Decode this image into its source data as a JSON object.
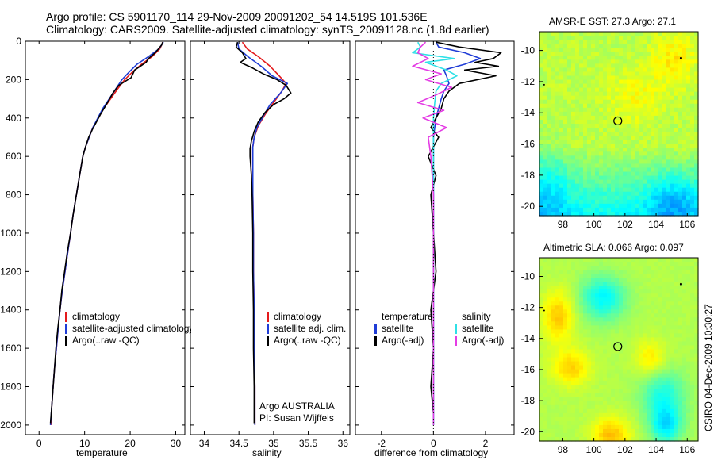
{
  "header": {
    "title_line1": "Argo profile: CS 5901170_114 29-Nov-2009 20091202_54 14.519S 101.536E",
    "title_line2": "Climatology: CARS2009. Satellite-adjusted climatology: synTS_20091128.nc (1.8d earlier)"
  },
  "footer": {
    "credit": "CSIRO 04-Dec-2009 10:30:27"
  },
  "annotation": {
    "line1": "Argo AUSTRALIA",
    "line2": "PI: Susan Wijffels"
  },
  "colors": {
    "red": "#e41a1c",
    "blue": "#1f3cd6",
    "black": "#000000",
    "cyan": "#2fe0e6",
    "magenta": "#e43ce4"
  },
  "chart_data": [
    {
      "type": "line",
      "xlabel": "temperature",
      "ylabel": "",
      "xlim": [
        -3,
        32
      ],
      "ylim": [
        2050,
        0
      ],
      "xticks": [
        0,
        10,
        20,
        30
      ],
      "yticks": [
        0,
        200,
        400,
        600,
        800,
        1000,
        1200,
        1400,
        1600,
        1800,
        2000
      ],
      "legend": [
        "climatology",
        "satellite-adjusted climatology",
        "Argo(..raw -QC)"
      ],
      "series": [
        {
          "name": "climatology",
          "color": "red",
          "points": [
            [
              27.2,
              5
            ],
            [
              26.5,
              40
            ],
            [
              24.8,
              80
            ],
            [
              22.5,
              120
            ],
            [
              20.5,
              160
            ],
            [
              18.8,
              200
            ],
            [
              17.2,
              250
            ],
            [
              15.7,
              300
            ],
            [
              14.2,
              350
            ],
            [
              13.0,
              400
            ],
            [
              11.8,
              450
            ],
            [
              11.0,
              500
            ],
            [
              10.2,
              550
            ],
            [
              9.6,
              600
            ],
            [
              8.9,
              700
            ],
            [
              8.2,
              800
            ],
            [
              7.5,
              900
            ],
            [
              6.9,
              1000
            ],
            [
              6.3,
              1100
            ],
            [
              5.7,
              1200
            ],
            [
              5.1,
              1300
            ],
            [
              4.6,
              1400
            ],
            [
              4.2,
              1500
            ],
            [
              3.8,
              1600
            ],
            [
              3.4,
              1700
            ],
            [
              3.1,
              1800
            ],
            [
              2.8,
              1900
            ],
            [
              2.6,
              2000
            ]
          ]
        },
        {
          "name": "satellite-adjusted climatology",
          "color": "blue",
          "points": [
            [
              27.3,
              5
            ],
            [
              26.3,
              40
            ],
            [
              24.0,
              80
            ],
            [
              21.5,
              120
            ],
            [
              19.8,
              160
            ],
            [
              18.2,
              200
            ],
            [
              16.8,
              250
            ],
            [
              15.4,
              300
            ],
            [
              14.0,
              350
            ],
            [
              12.9,
              400
            ],
            [
              11.8,
              450
            ],
            [
              11.0,
              500
            ],
            [
              10.2,
              550
            ],
            [
              9.6,
              600
            ],
            [
              8.9,
              700
            ],
            [
              8.2,
              800
            ],
            [
              7.5,
              900
            ],
            [
              6.9,
              1000
            ],
            [
              6.3,
              1100
            ],
            [
              5.7,
              1200
            ],
            [
              5.1,
              1300
            ],
            [
              4.6,
              1400
            ],
            [
              4.2,
              1500
            ],
            [
              3.8,
              1600
            ],
            [
              3.4,
              1700
            ],
            [
              3.1,
              1800
            ],
            [
              2.8,
              1900
            ],
            [
              2.5,
              2000
            ]
          ]
        },
        {
          "name": "Argo(..raw -QC)",
          "color": "black",
          "points": [
            [
              27.1,
              5
            ],
            [
              26.9,
              20
            ],
            [
              25.5,
              60
            ],
            [
              24.0,
              90
            ],
            [
              23.5,
              110
            ],
            [
              21.0,
              150
            ],
            [
              20.2,
              190
            ],
            [
              17.5,
              230
            ],
            [
              16.2,
              270
            ],
            [
              15.5,
              300
            ],
            [
              14.5,
              340
            ],
            [
              13.5,
              380
            ],
            [
              12.6,
              420
            ],
            [
              11.7,
              460
            ],
            [
              10.9,
              500
            ],
            [
              10.2,
              550
            ],
            [
              9.6,
              600
            ],
            [
              8.9,
              700
            ],
            [
              8.2,
              800
            ],
            [
              7.5,
              900
            ],
            [
              6.9,
              1000
            ],
            [
              6.2,
              1100
            ],
            [
              5.6,
              1200
            ],
            [
              5.0,
              1300
            ],
            [
              4.6,
              1400
            ],
            [
              4.1,
              1500
            ],
            [
              3.7,
              1600
            ],
            [
              3.4,
              1700
            ],
            [
              3.1,
              1800
            ],
            [
              2.8,
              1900
            ],
            [
              2.5,
              1990
            ]
          ]
        }
      ]
    },
    {
      "type": "line",
      "xlabel": "salinity",
      "ylabel": "",
      "xlim": [
        33.8,
        36.1
      ],
      "ylim": [
        2050,
        0
      ],
      "xticks": [
        34,
        34.5,
        35,
        35.5,
        36
      ],
      "xticklabels": [
        "34",
        "34.5",
        "35",
        "35.5",
        "36"
      ],
      "yticks": [],
      "legend": [
        "climatology",
        "satellite adj. clim.",
        "Argo(..raw -QC)"
      ],
      "series": [
        {
          "name": "climatology",
          "color": "red",
          "points": [
            [
              34.55,
              5
            ],
            [
              34.62,
              40
            ],
            [
              34.78,
              80
            ],
            [
              34.95,
              130
            ],
            [
              35.08,
              180
            ],
            [
              35.18,
              220
            ],
            [
              35.12,
              260
            ],
            [
              35.0,
              320
            ],
            [
              34.88,
              380
            ],
            [
              34.78,
              440
            ],
            [
              34.72,
              500
            ],
            [
              34.7,
              550
            ],
            [
              34.7,
              600
            ],
            [
              34.7,
              800
            ],
            [
              34.71,
              1000
            ],
            [
              34.71,
              1200
            ],
            [
              34.72,
              1400
            ],
            [
              34.72,
              1600
            ],
            [
              34.73,
              1800
            ],
            [
              34.73,
              2000
            ]
          ]
        },
        {
          "name": "satellite adj. clim.",
          "color": "blue",
          "points": [
            [
              34.48,
              5
            ],
            [
              34.5,
              40
            ],
            [
              34.63,
              80
            ],
            [
              34.82,
              130
            ],
            [
              34.98,
              180
            ],
            [
              35.2,
              220
            ],
            [
              35.1,
              270
            ],
            [
              34.95,
              330
            ],
            [
              34.85,
              390
            ],
            [
              34.76,
              450
            ],
            [
              34.72,
              500
            ],
            [
              34.7,
              550
            ],
            [
              34.7,
              600
            ],
            [
              34.7,
              800
            ],
            [
              34.71,
              1000
            ],
            [
              34.71,
              1200
            ],
            [
              34.72,
              1400
            ],
            [
              34.72,
              1600
            ],
            [
              34.73,
              1800
            ],
            [
              34.73,
              2000
            ]
          ]
        },
        {
          "name": "Argo(..raw -QC)",
          "color": "black",
          "points": [
            [
              34.48,
              5
            ],
            [
              34.46,
              30
            ],
            [
              34.55,
              60
            ],
            [
              34.6,
              90
            ],
            [
              34.52,
              110
            ],
            [
              34.7,
              140
            ],
            [
              34.85,
              170
            ],
            [
              35.05,
              200
            ],
            [
              35.18,
              230
            ],
            [
              35.25,
              270
            ],
            [
              35.15,
              300
            ],
            [
              35.0,
              330
            ],
            [
              34.88,
              370
            ],
            [
              34.78,
              420
            ],
            [
              34.72,
              470
            ],
            [
              34.68,
              520
            ],
            [
              34.66,
              560
            ],
            [
              34.66,
              600
            ],
            [
              34.68,
              700
            ],
            [
              34.69,
              800
            ],
            [
              34.7,
              1000
            ],
            [
              34.7,
              1200
            ],
            [
              34.71,
              1400
            ],
            [
              34.71,
              1600
            ],
            [
              34.72,
              1800
            ],
            [
              34.72,
              1990
            ]
          ]
        }
      ]
    },
    {
      "type": "line",
      "xlabel": "difference from climatology",
      "ylabel": "",
      "xlim": [
        -3,
        3.1
      ],
      "ylim": [
        2050,
        0
      ],
      "xticks": [
        -2,
        0,
        2
      ],
      "yticks": [],
      "legend": [
        "temperature",
        "satellite",
        "Argo(-adj)",
        "salinity",
        "satellite",
        "Argo(-adj)"
      ],
      "series": [
        {
          "name": "temperature satellite",
          "color": "blue",
          "points": [
            [
              0.1,
              5
            ],
            [
              0.2,
              30
            ],
            [
              1.2,
              60
            ],
            [
              1.8,
              90
            ],
            [
              1.2,
              120
            ],
            [
              0.4,
              150
            ],
            [
              0.5,
              180
            ],
            [
              0.6,
              220
            ],
            [
              0.4,
              260
            ],
            [
              0.3,
              300
            ],
            [
              0.2,
              350
            ],
            [
              0.1,
              400
            ],
            [
              0.05,
              450
            ],
            [
              0.0,
              500
            ],
            [
              0.0,
              800
            ],
            [
              0.0,
              1200
            ],
            [
              0.0,
              1600
            ],
            [
              0.0,
              2000
            ]
          ]
        },
        {
          "name": "temperature Argo(-adj)",
          "color": "black",
          "points": [
            [
              0.1,
              5
            ],
            [
              1.0,
              30
            ],
            [
              2.6,
              60
            ],
            [
              2.3,
              90
            ],
            [
              1.6,
              110
            ],
            [
              2.5,
              130
            ],
            [
              1.2,
              150
            ],
            [
              2.4,
              180
            ],
            [
              1.0,
              220
            ],
            [
              0.6,
              260
            ],
            [
              0.4,
              300
            ],
            [
              0.3,
              350
            ],
            [
              0.1,
              400
            ],
            [
              -0.1,
              450
            ],
            [
              0.2,
              500
            ],
            [
              -0.2,
              600
            ],
            [
              0.1,
              700
            ],
            [
              -0.1,
              800
            ],
            [
              0.0,
              1000
            ],
            [
              0.1,
              1200
            ],
            [
              -0.1,
              1400
            ],
            [
              0.0,
              1600
            ],
            [
              -0.1,
              1800
            ],
            [
              0.0,
              1940
            ]
          ]
        },
        {
          "name": "salinity satellite",
          "color": "cyan",
          "points": [
            [
              -0.6,
              5
            ],
            [
              -0.5,
              30
            ],
            [
              -0.8,
              60
            ],
            [
              0.8,
              90
            ],
            [
              -0.3,
              110
            ],
            [
              0.5,
              150
            ],
            [
              0.9,
              180
            ],
            [
              0.3,
              220
            ],
            [
              0.1,
              260
            ],
            [
              0.05,
              320
            ],
            [
              0.0,
              400
            ],
            [
              0.0,
              800
            ],
            [
              0.0,
              1200
            ],
            [
              0.0,
              1600
            ],
            [
              0.0,
              2000
            ]
          ]
        },
        {
          "name": "salinity Argo(-adj)",
          "color": "magenta",
          "points": [
            [
              -0.3,
              5
            ],
            [
              -0.5,
              30
            ],
            [
              -0.6,
              60
            ],
            [
              -0.2,
              90
            ],
            [
              -0.8,
              130
            ],
            [
              0.3,
              170
            ],
            [
              -0.3,
              200
            ],
            [
              0.7,
              240
            ],
            [
              0.1,
              280
            ],
            [
              -0.6,
              320
            ],
            [
              0.4,
              360
            ],
            [
              -0.4,
              400
            ],
            [
              0.5,
              450
            ],
            [
              -0.2,
              500
            ],
            [
              -0.1,
              600
            ],
            [
              0.0,
              800
            ],
            [
              0.0,
              1200
            ],
            [
              0.0,
              1600
            ],
            [
              0.0,
              2000
            ]
          ]
        }
      ]
    },
    {
      "type": "heatmap",
      "title": "AMSR-E SST: 27.3 Argo: 27.1",
      "xlim": [
        96.5,
        106.7
      ],
      "ylim": [
        -20.6,
        -8.8
      ],
      "xticks": [
        98,
        100,
        102,
        104,
        106
      ],
      "yticks": [
        -10,
        -12,
        -14,
        -16,
        -18,
        -20
      ],
      "marker": {
        "lon": 101.536,
        "lat": -14.519
      }
    },
    {
      "type": "heatmap",
      "title": "Altimetric SLA: 0.066 Argo: 0.097",
      "xlim": [
        96.5,
        106.7
      ],
      "ylim": [
        -20.6,
        -8.8
      ],
      "xticks": [
        98,
        100,
        102,
        104,
        106
      ],
      "yticks": [
        -10,
        -12,
        -14,
        -16,
        -18,
        -20
      ],
      "marker": {
        "lon": 101.536,
        "lat": -14.519
      }
    }
  ]
}
